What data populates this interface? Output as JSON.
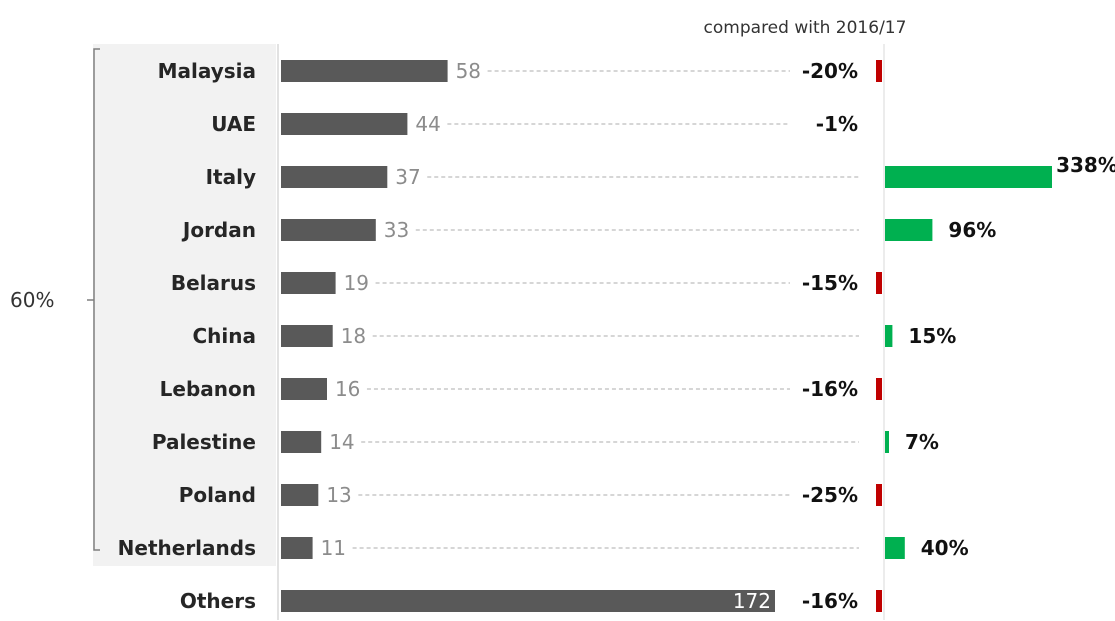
{
  "chart_data": {
    "type": "bar",
    "title": "",
    "change_header": "compared with 2016/17",
    "bracket_label": "60%",
    "categories": [
      "Malaysia",
      "UAE",
      "Italy",
      "Jordan",
      "Belarus",
      "China",
      "Lebanon",
      "Palestine",
      "Poland",
      "Netherlands",
      "Others"
    ],
    "values": [
      58,
      44,
      37,
      33,
      19,
      18,
      16,
      14,
      13,
      11,
      172
    ],
    "value_labels": [
      "58",
      "44",
      "37",
      "33",
      "19",
      "18",
      "16",
      "14",
      "13",
      "11",
      "172"
    ],
    "change_pct": [
      -20,
      -1,
      338,
      96,
      -15,
      15,
      -16,
      7,
      -25,
      40,
      -16
    ],
    "change_labels": [
      "-20%",
      "-1%",
      "338%",
      "96%",
      "-15%",
      "15%",
      "-16%",
      "7%",
      "-25%",
      "40%",
      "-16%"
    ],
    "bracketed_categories": [
      "Malaysia",
      "UAE",
      "Italy",
      "Jordan",
      "Belarus",
      "China",
      "Lebanon",
      "Palestine",
      "Poland",
      "Netherlands"
    ],
    "xlim": [
      0,
      172
    ],
    "grid": false,
    "legend": "none",
    "colors": {
      "bar": "#595959",
      "increase": "#00b050",
      "decrease": "#c00000",
      "leader": "#c8c8c8",
      "label_panel": "#f2f2f2"
    }
  }
}
